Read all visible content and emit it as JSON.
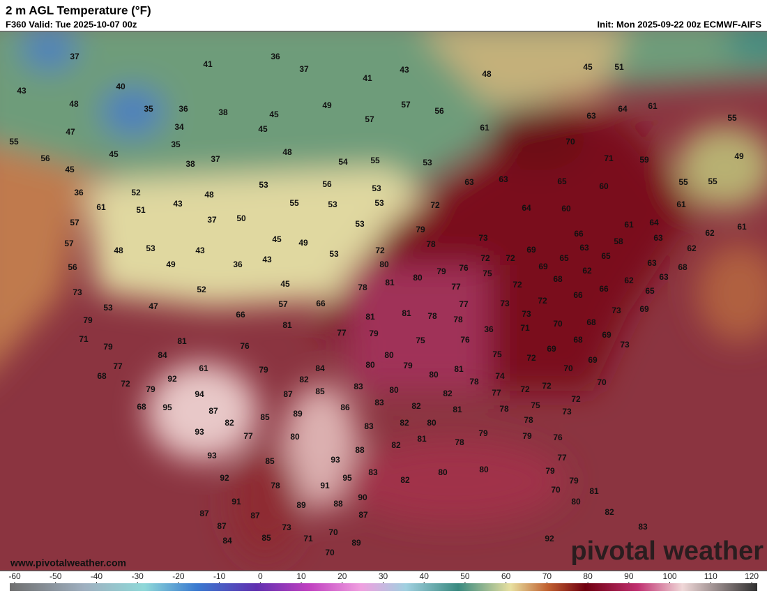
{
  "header": {
    "title": "2 m AGL Temperature (°F)",
    "valid": "F360 Valid: Tue 2025-10-07 00z",
    "init": "Init: Mon 2025-09-22 00z ECMWF-AIFS"
  },
  "map": {
    "temperatures": [
      37,
      36,
      41,
      37,
      43,
      48,
      45,
      51,
      41,
      43,
      40,
      48,
      35,
      36,
      38,
      45,
      49,
      57,
      56,
      57,
      64,
      61,
      55,
      63,
      47,
      34,
      45,
      61,
      55,
      35,
      45,
      56,
      48,
      37,
      38,
      54,
      55,
      53,
      70,
      71,
      59,
      49,
      45,
      52,
      36,
      48,
      53,
      56,
      53,
      63,
      63,
      65,
      60,
      55,
      55,
      61,
      51,
      43,
      55,
      53,
      53,
      72,
      64,
      60,
      61,
      57,
      37,
      50,
      53,
      79,
      61,
      64,
      62,
      61,
      66,
      57,
      48,
      53,
      43,
      45,
      49,
      78,
      73,
      58,
      63,
      62,
      69,
      63,
      56,
      49,
      36,
      43,
      53,
      72,
      80,
      79,
      76,
      72,
      72,
      69,
      65,
      65,
      63,
      68,
      73,
      45,
      78,
      81,
      80,
      75,
      77,
      72,
      68,
      62,
      62,
      63,
      66,
      53,
      47,
      52,
      57,
      66,
      77,
      73,
      72,
      73,
      66,
      73,
      69,
      65,
      79,
      66,
      81,
      77,
      79,
      81,
      81,
      78,
      78,
      36,
      71,
      70,
      68,
      69,
      71,
      81,
      76,
      75,
      76,
      68,
      73,
      79,
      84,
      61,
      79,
      84,
      80,
      80,
      79,
      75,
      72,
      69,
      69,
      70,
      77,
      68,
      72,
      92,
      82,
      80,
      81,
      74,
      78,
      72,
      72,
      70,
      79,
      94,
      87,
      85,
      83,
      80,
      82,
      77,
      72,
      68,
      95,
      87,
      89,
      86,
      83,
      82,
      81,
      78,
      75,
      82,
      85,
      93,
      77,
      83,
      82,
      80,
      78,
      73,
      80,
      81,
      78,
      79,
      79,
      76,
      93,
      85,
      93,
      82,
      88,
      77,
      92,
      95,
      83,
      82,
      80,
      80,
      79,
      79,
      78,
      91,
      91,
      90,
      89,
      88,
      70,
      80,
      81,
      87,
      87,
      87,
      82,
      87,
      73,
      70,
      83,
      84,
      85,
      71,
      89,
      92,
      70
    ]
  },
  "colorbar": {
    "lim": [
      -60,
      120
    ],
    "ticks": [
      -60,
      -50,
      -40,
      -30,
      -20,
      -10,
      0,
      10,
      20,
      30,
      40,
      50,
      60,
      70,
      80,
      90,
      100,
      110,
      120
    ]
  },
  "footer": {
    "url": "www.pivotalweather.com",
    "watermark": "pivotal weather"
  }
}
